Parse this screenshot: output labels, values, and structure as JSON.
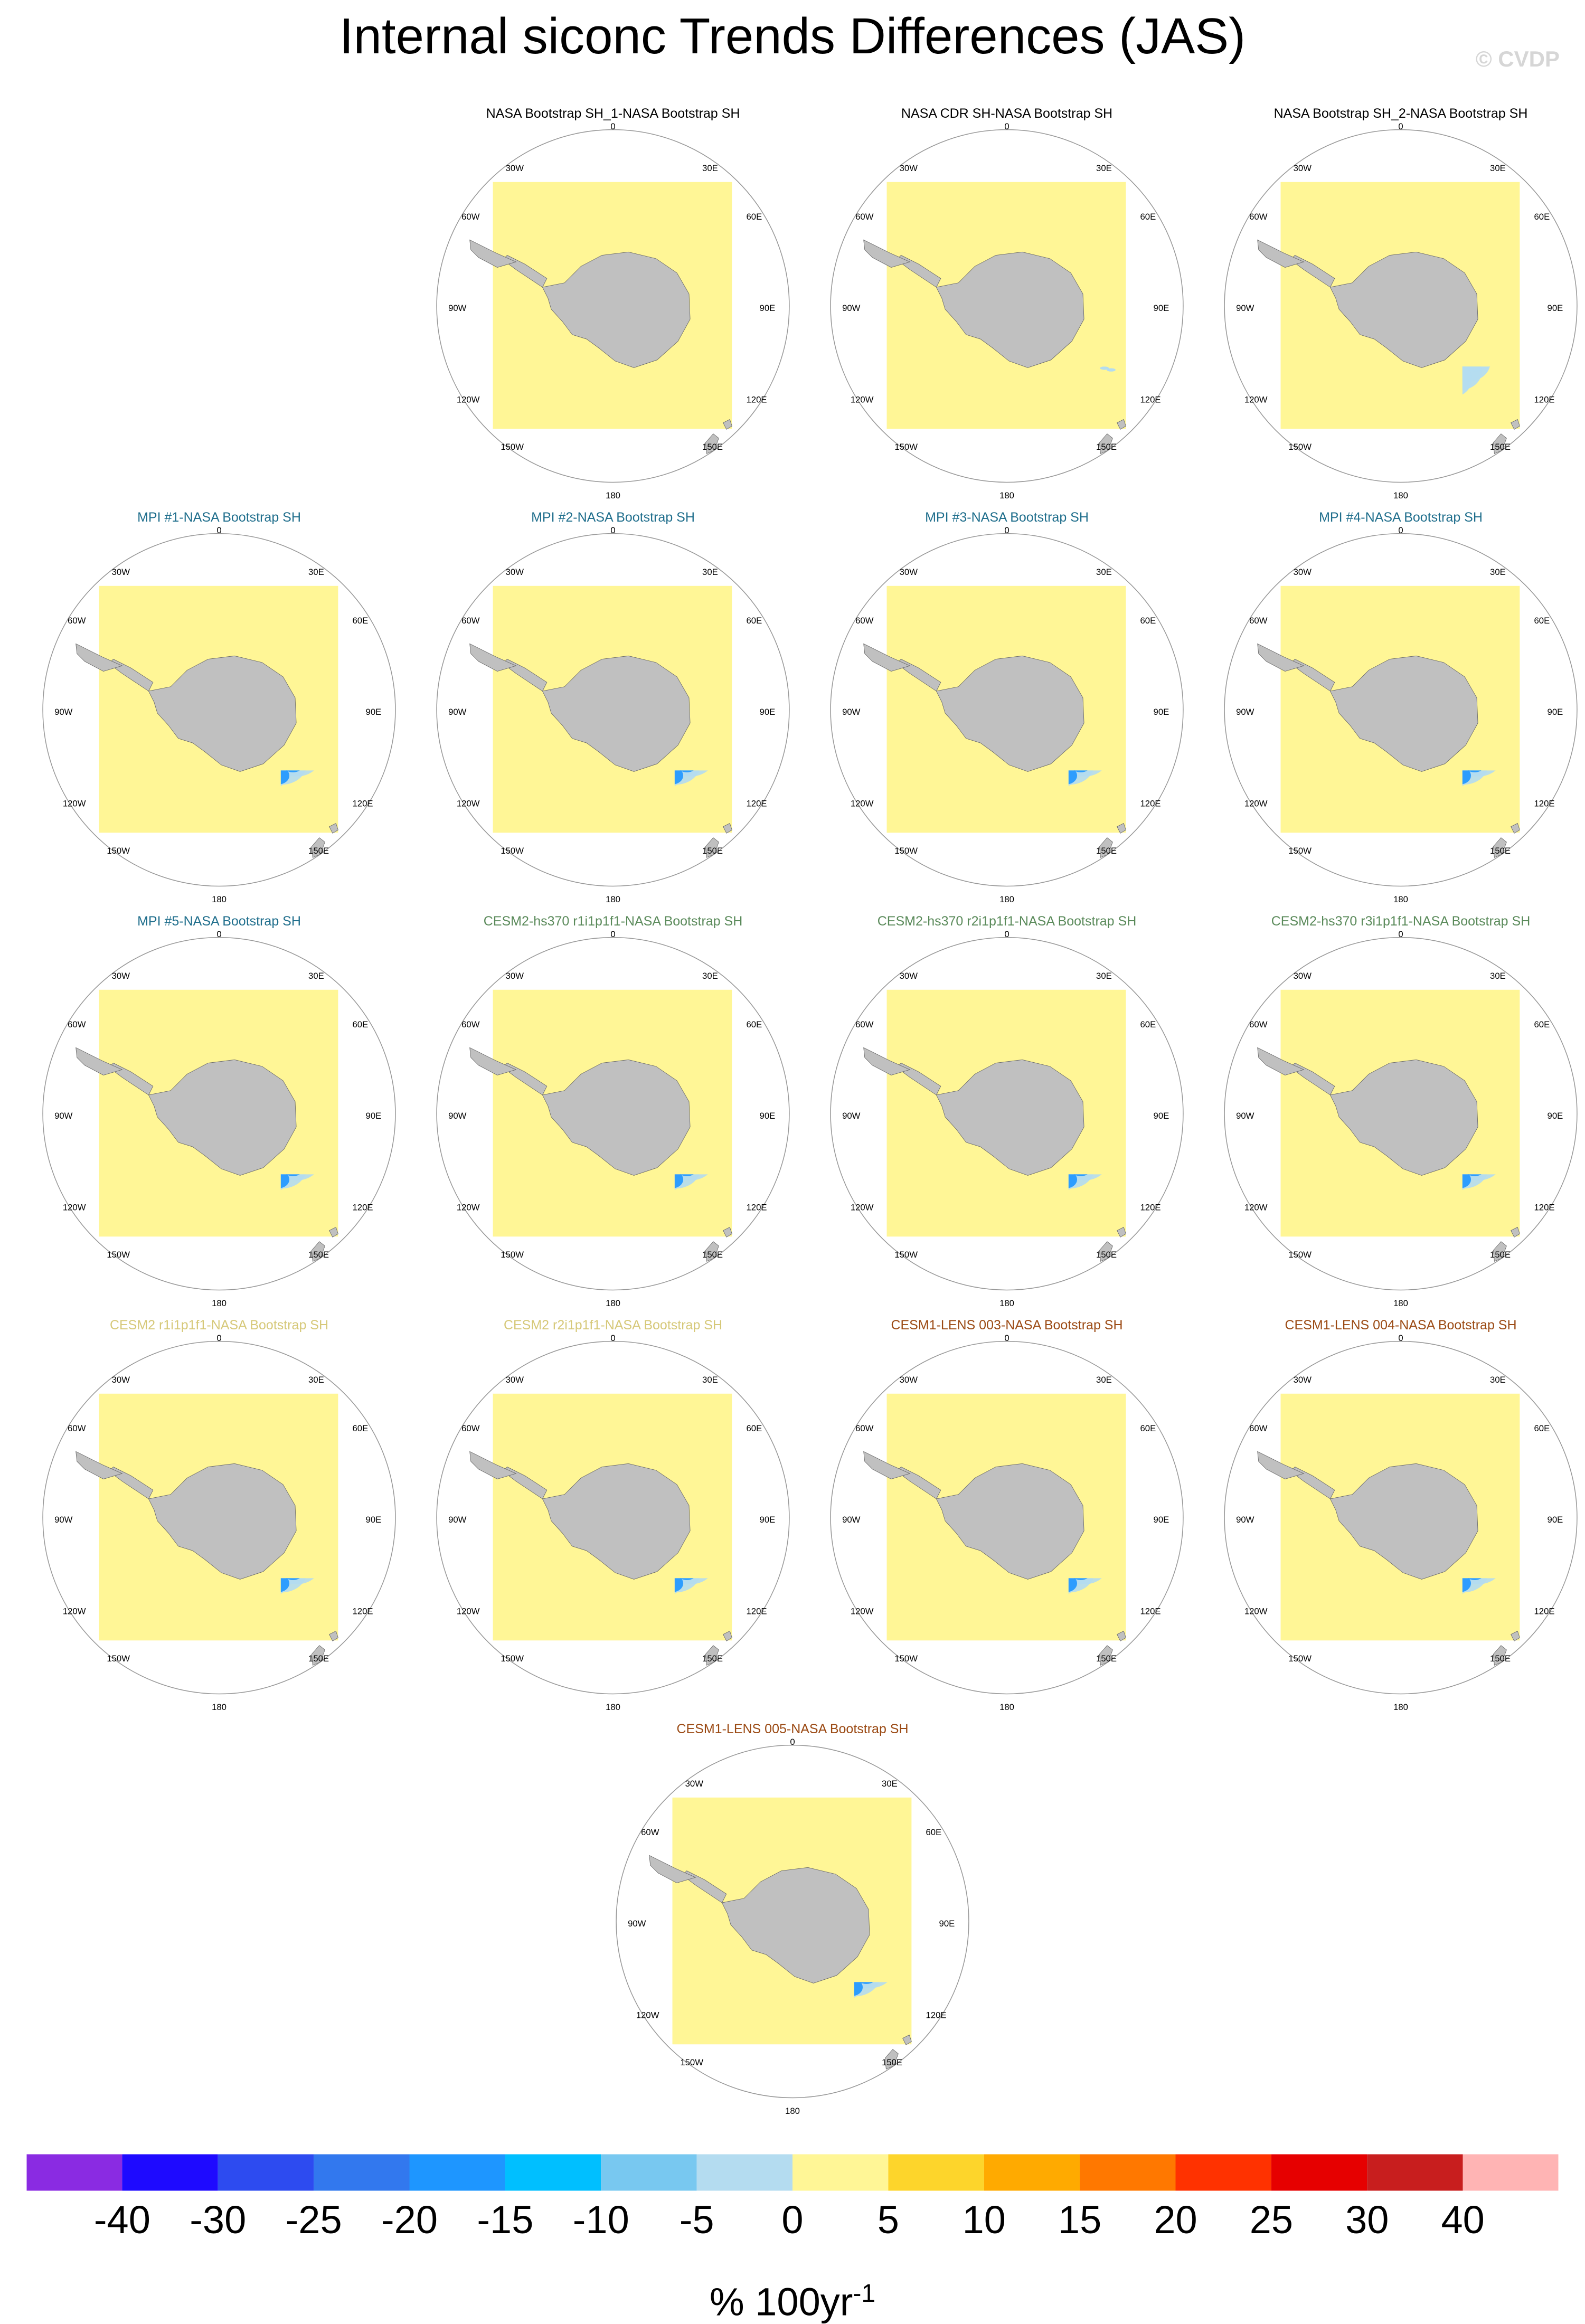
{
  "title": "Internal siconc Trends Differences (JAS)",
  "watermark": "© CVDP",
  "lon_labels": {
    "top": "0",
    "bottom": "180",
    "left": [
      "30W",
      "60W",
      "90W",
      "120W",
      "150W"
    ],
    "right": [
      "30E",
      "60E",
      "90E",
      "120E",
      "150E"
    ]
  },
  "colors": {
    "title_black": "#000000",
    "title_mpi": "#1f6e8c",
    "title_cesm2_hs370": "#5a8a5a",
    "title_cesm2": "#d6c878",
    "title_cesm1": "#9b4a14",
    "land": "#c0c0c0",
    "ocean_zero": "#fff696"
  },
  "panels": [
    {
      "title": "NASA Bootstrap SH_1-NASA Bootstrap SH",
      "title_color": "#000000",
      "pattern": "none"
    },
    {
      "title": "NASA CDR SH-NASA Bootstrap SH",
      "title_color": "#000000",
      "pattern": "speckle"
    },
    {
      "title": "NASA Bootstrap SH_2-NASA Bootstrap SH",
      "title_color": "#000000",
      "pattern": "light"
    },
    {
      "title": "MPI #1-NASA Bootstrap SH",
      "title_color": "#1f6e8c",
      "pattern": "mpi1"
    },
    {
      "title": "MPI #2-NASA Bootstrap SH",
      "title_color": "#1f6e8c",
      "pattern": "mpi2"
    },
    {
      "title": "MPI #3-NASA Bootstrap SH",
      "title_color": "#1f6e8c",
      "pattern": "mpi3"
    },
    {
      "title": "MPI #4-NASA Bootstrap SH",
      "title_color": "#1f6e8c",
      "pattern": "mpi4"
    },
    {
      "title": "MPI #5-NASA Bootstrap SH",
      "title_color": "#1f6e8c",
      "pattern": "mpi5"
    },
    {
      "title": "CESM2-hs370 r1i1p1f1-NASA Bootstrap SH",
      "title_color": "#5a8a5a",
      "pattern": "ring"
    },
    {
      "title": "CESM2-hs370 r2i1p1f1-NASA Bootstrap SH",
      "title_color": "#5a8a5a",
      "pattern": "ring"
    },
    {
      "title": "CESM2-hs370 r3i1p1f1-NASA Bootstrap SH",
      "title_color": "#5a8a5a",
      "pattern": "ring"
    },
    {
      "title": "CESM2 r1i1p1f1-NASA Bootstrap SH",
      "title_color": "#d6c878",
      "pattern": "ring"
    },
    {
      "title": "CESM2 r2i1p1f1-NASA Bootstrap SH",
      "title_color": "#d6c878",
      "pattern": "ring"
    },
    {
      "title": "CESM1-LENS 003-NASA Bootstrap SH",
      "title_color": "#9b4a14",
      "pattern": "ring"
    },
    {
      "title": "CESM1-LENS 004-NASA Bootstrap SH",
      "title_color": "#9b4a14",
      "pattern": "ring"
    },
    {
      "title": "CESM1-LENS 005-NASA Bootstrap SH",
      "title_color": "#9b4a14",
      "pattern": "ring"
    }
  ],
  "colorbar": {
    "colors": [
      "#8a2be2",
      "#1e0aff",
      "#2d4bf0",
      "#3278ee",
      "#1e96ff",
      "#00bfff",
      "#78c8f0",
      "#b4dcf0",
      "#fff696",
      "#fdd52b",
      "#ffaa00",
      "#ff7800",
      "#ff3200",
      "#e60000",
      "#c81e1e",
      "#ffb4b4"
    ],
    "tick_labels": [
      "-40",
      "-30",
      "-25",
      "-20",
      "-15",
      "-10",
      "-5",
      "0",
      "5",
      "10",
      "15",
      "20",
      "25",
      "30",
      "40"
    ],
    "label_main": "% 100yr",
    "label_exp": "-1"
  }
}
